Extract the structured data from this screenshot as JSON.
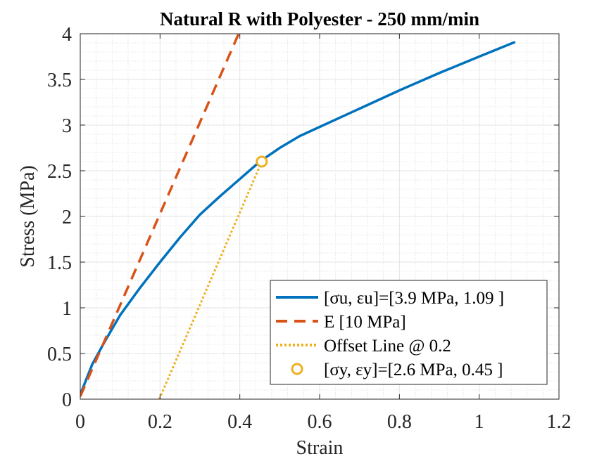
{
  "chart_data": {
    "type": "line",
    "title": "Natural R with Polyester - 250 mm/min",
    "xlabel": "Strain",
    "ylabel": "Stress (MPa)",
    "xlim": [
      0,
      1.2
    ],
    "ylim": [
      0,
      4
    ],
    "xticks": [
      0,
      0.2,
      0.4,
      0.6,
      0.8,
      1,
      1.2
    ],
    "xtick_labels": [
      "0",
      "0.2",
      "0.4",
      "0.6",
      "0.8",
      "1",
      "1.2"
    ],
    "yticks": [
      0,
      0.5,
      1,
      1.5,
      2,
      2.5,
      3,
      3.5,
      4
    ],
    "ytick_labels": [
      "0",
      "0.5",
      "1",
      "1.5",
      "2",
      "2.5",
      "3",
      "3.5",
      "4"
    ],
    "grid": true,
    "minor_grid": true,
    "legend_position": "bottom-right",
    "series": [
      {
        "legend": "[σu, εu]=[3.9 MPa, 1.09 ]",
        "style": "solid",
        "color": "#0072BD",
        "x": [
          0,
          0.03,
          0.06,
          0.1,
          0.15,
          0.2,
          0.25,
          0.3,
          0.35,
          0.4,
          0.45,
          0.5,
          0.55,
          0.6,
          0.7,
          0.8,
          0.9,
          1.0,
          1.09
        ],
        "y": [
          0.05,
          0.38,
          0.62,
          0.92,
          1.22,
          1.5,
          1.77,
          2.02,
          2.22,
          2.41,
          2.6,
          2.75,
          2.88,
          2.98,
          3.18,
          3.38,
          3.57,
          3.75,
          3.91
        ]
      },
      {
        "legend": "E [10 MPa]",
        "style": "dashed",
        "color": "#D95319",
        "x": [
          0,
          0.4
        ],
        "y": [
          0.03,
          4.03
        ]
      },
      {
        "legend": "Offset Line @ 0.2",
        "style": "dotted",
        "color": "#EDB120",
        "x": [
          0.198,
          0.455
        ],
        "y": [
          0,
          2.6
        ]
      },
      {
        "legend": "[σy, εy]=[2.6 MPa, 0.45 ]",
        "style": "marker",
        "color": "#EDB120",
        "x": [
          0.455
        ],
        "y": [
          2.6
        ]
      }
    ]
  }
}
